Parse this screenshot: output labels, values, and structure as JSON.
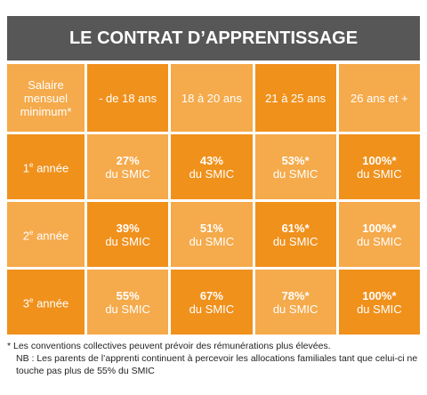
{
  "header": {
    "title": "LE CONTRAT D’APPRENTISSAGE"
  },
  "table": {
    "corner": "Salaire mensuel minimum*",
    "columns": [
      "- de 18 ans",
      "18 à 20 ans",
      "21 à 25 ans",
      "26 ans et +"
    ],
    "rows": [
      {
        "label": {
          "num": "1",
          "sup": "e",
          "rest": " année"
        },
        "cells": [
          {
            "value": "27%",
            "unit": "du SMIC"
          },
          {
            "value": "43%",
            "unit": "du SMIC"
          },
          {
            "value": "53%*",
            "unit": "du SMIC"
          },
          {
            "value": "100%*",
            "unit": "du SMIC"
          }
        ]
      },
      {
        "label": {
          "num": "2",
          "sup": "e",
          "rest": " année"
        },
        "cells": [
          {
            "value": "39%",
            "unit": "du SMIC"
          },
          {
            "value": "51%",
            "unit": "du SMIC"
          },
          {
            "value": "61%*",
            "unit": "du SMIC"
          },
          {
            "value": "100%*",
            "unit": "du SMIC"
          }
        ]
      },
      {
        "label": {
          "num": "3",
          "sup": "e",
          "rest": " année"
        },
        "cells": [
          {
            "value": "55%",
            "unit": "du SMIC"
          },
          {
            "value": "67%",
            "unit": "du SMIC"
          },
          {
            "value": "78%*",
            "unit": "du SMIC"
          },
          {
            "value": "100%*",
            "unit": "du SMIC"
          }
        ]
      }
    ]
  },
  "notes": [
    "* Les conventions collectives peuvent prévoir des rémunérations plus élevées.",
    "NB : Les parents de l’apprenti continuent à percevoir les allocations familiales tant que celui-ci ne touche pas plus de 55% du SMIC"
  ]
}
